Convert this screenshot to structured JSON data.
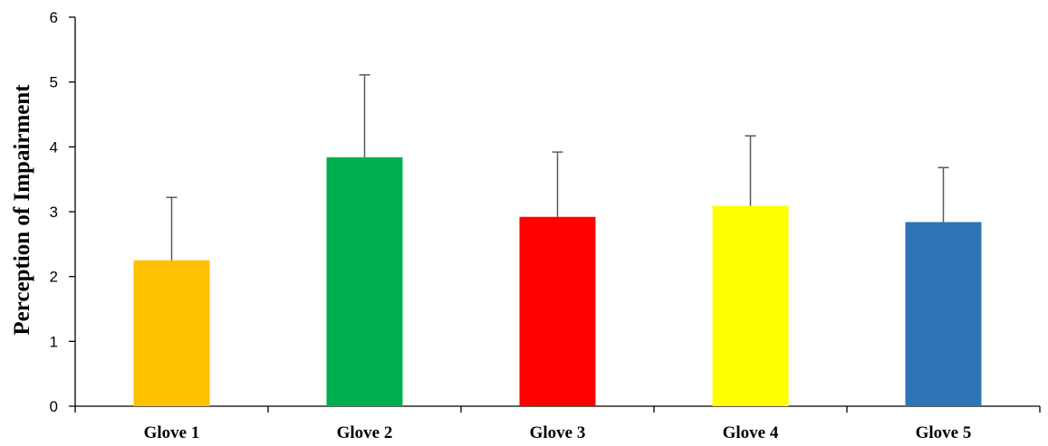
{
  "chart_data": {
    "type": "bar",
    "title": "",
    "xlabel": "",
    "ylabel": "Perception of Impairment",
    "ylim": [
      0,
      6
    ],
    "yticks": [
      "0",
      "1",
      "2",
      "3",
      "4",
      "5",
      "6"
    ],
    "grid": false,
    "legend": "none",
    "categories": [
      "Glove 1",
      "Glove 2",
      "Glove 3",
      "Glove 4",
      "Glove 5"
    ],
    "values": [
      2.25,
      3.84,
      2.92,
      3.09,
      2.84
    ],
    "error_upper": [
      3.22,
      5.11,
      3.92,
      4.17,
      3.68
    ],
    "colors": [
      "#FFC000",
      "#00B050",
      "#FF0000",
      "#FFFF00",
      "#2E75B6"
    ]
  }
}
